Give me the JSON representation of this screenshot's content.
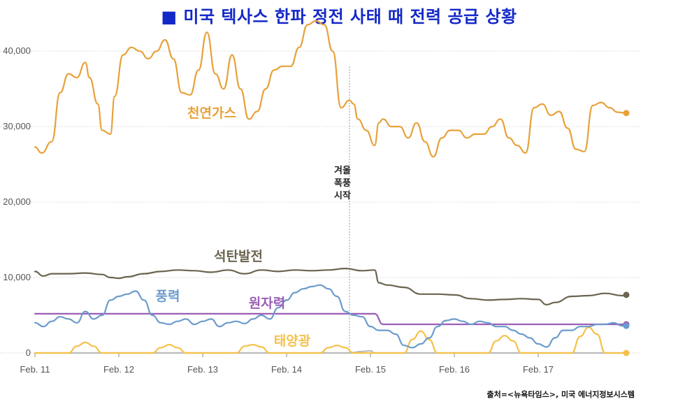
{
  "chart_data": {
    "type": "line",
    "title": "■ 미국 텍사스 한파 정전 사태 때 전력 공급 상황",
    "xlabel": "",
    "ylabel": "",
    "x_ticks": [
      "Feb. 11",
      "Feb. 12",
      "Feb. 13",
      "Feb. 14",
      "Feb. 15",
      "Feb. 16",
      "Feb. 17"
    ],
    "y_ticks": [
      "0",
      "10,000",
      "20,000",
      "30,000",
      "40,000"
    ],
    "xlim": [
      0,
      7.1
    ],
    "ylim": [
      0,
      44000
    ],
    "grid": true,
    "annotation": {
      "x": 3.75,
      "lines": [
        "겨울",
        "폭풍",
        "시작"
      ]
    },
    "series": [
      {
        "name": "천연가스",
        "color": "#e8a13a",
        "x": [
          0,
          0.08,
          0.2,
          0.3,
          0.4,
          0.5,
          0.6,
          0.65,
          0.75,
          0.8,
          0.9,
          0.95,
          1.05,
          1.15,
          1.25,
          1.35,
          1.45,
          1.55,
          1.65,
          1.75,
          1.85,
          1.95,
          2.05,
          2.15,
          2.25,
          2.35,
          2.45,
          2.55,
          2.65,
          2.75,
          2.85,
          2.95,
          3.05,
          3.15,
          3.25,
          3.35,
          3.45,
          3.55,
          3.65,
          3.75,
          3.8,
          3.85,
          3.95,
          4.05,
          4.1,
          4.15,
          4.25,
          4.3,
          4.35,
          4.45,
          4.55,
          4.65,
          4.75,
          4.85,
          4.95,
          5.05,
          5.15,
          5.25,
          5.35,
          5.45,
          5.55,
          5.65,
          5.75,
          5.85,
          5.95,
          6.05,
          6.15,
          6.25,
          6.35,
          6.45,
          6.55,
          6.65,
          6.75,
          6.85,
          6.95,
          7.05
        ],
        "values": [
          27300,
          26500,
          28000,
          34500,
          37000,
          36500,
          38500,
          36500,
          33000,
          29500,
          29000,
          34000,
          39500,
          40500,
          40000,
          39000,
          40000,
          41500,
          39000,
          34500,
          34200,
          37500,
          42500,
          37000,
          35000,
          39500,
          35000,
          31000,
          32000,
          35000,
          37500,
          38000,
          38000,
          40500,
          43500,
          44000,
          43500,
          40000,
          32500,
          33500,
          33000,
          31000,
          29500,
          27500,
          30500,
          31000,
          30000,
          30000,
          30000,
          28500,
          30500,
          28000,
          26000,
          28500,
          29500,
          29500,
          28500,
          29000,
          29000,
          30000,
          31000,
          28500,
          27500,
          26500,
          32500,
          33000,
          31500,
          32000,
          29800,
          27000,
          26700,
          32800,
          33200,
          32500,
          31900,
          31800
        ],
        "x_offset_start": 0
      },
      {
        "name": "석탄발전",
        "color": "#6b6450",
        "x": [
          0,
          0.1,
          0.2,
          0.4,
          0.6,
          0.8,
          0.9,
          1.0,
          1.1,
          1.3,
          1.5,
          1.7,
          1.9,
          2.1,
          2.3,
          2.5,
          2.7,
          2.9,
          3.1,
          3.3,
          3.5,
          3.7,
          3.9,
          4.05,
          4.1,
          4.2,
          4.4,
          4.6,
          4.8,
          5.0,
          5.2,
          5.4,
          5.6,
          5.8,
          6.0,
          6.1,
          6.2,
          6.4,
          6.6,
          6.8,
          7.0,
          7.05
        ],
        "values": [
          10800,
          10200,
          10500,
          10500,
          10600,
          10400,
          10000,
          9900,
          10100,
          10500,
          10800,
          11000,
          10900,
          10700,
          11000,
          10500,
          11000,
          10800,
          11000,
          10900,
          11000,
          11200,
          10900,
          11000,
          9300,
          9000,
          8700,
          7800,
          7800,
          7700,
          7200,
          7000,
          7100,
          7200,
          7100,
          6400,
          6700,
          7500,
          7600,
          7900,
          7600,
          7700
        ],
        "x_offset_start": 0
      },
      {
        "name": "풍력",
        "color": "#6b9bcc",
        "x": [
          0,
          0.1,
          0.2,
          0.3,
          0.4,
          0.5,
          0.6,
          0.7,
          0.8,
          0.9,
          1.0,
          1.1,
          1.2,
          1.3,
          1.4,
          1.5,
          1.6,
          1.7,
          1.8,
          1.9,
          2.0,
          2.1,
          2.2,
          2.3,
          2.4,
          2.5,
          2.6,
          2.7,
          2.8,
          2.9,
          3.0,
          3.1,
          3.2,
          3.3,
          3.4,
          3.5,
          3.6,
          3.7,
          3.8,
          3.9,
          4.0,
          4.1,
          4.2,
          4.3,
          4.4,
          4.5,
          4.6,
          4.7,
          4.8,
          4.9,
          5.0,
          5.1,
          5.2,
          5.3,
          5.4,
          5.5,
          5.6,
          5.7,
          5.8,
          5.9,
          6.0,
          6.1,
          6.2,
          6.3,
          6.4,
          6.5,
          6.6,
          6.7,
          6.8,
          6.9,
          7.0,
          7.05
        ],
        "values": [
          4000,
          3500,
          4200,
          4800,
          4500,
          4000,
          5500,
          4500,
          5000,
          7000,
          7500,
          7800,
          8200,
          7000,
          5000,
          4000,
          3800,
          4200,
          4500,
          3800,
          4200,
          4500,
          3500,
          4000,
          4200,
          3900,
          4500,
          5000,
          4500,
          6000,
          7000,
          8000,
          8500,
          8800,
          9000,
          8500,
          7500,
          5500,
          5000,
          4800,
          3500,
          3000,
          3000,
          2500,
          1000,
          700,
          1200,
          2000,
          3500,
          4300,
          4500,
          4200,
          3800,
          4200,
          4000,
          3500,
          3500,
          3000,
          2500,
          2000,
          1200,
          800,
          2000,
          3000,
          3000,
          3500,
          3500,
          3800,
          3800,
          4000,
          3600,
          3600
        ],
        "x_offset_start": 0
      },
      {
        "name": "원자력",
        "color": "#9a5fb6",
        "x": [
          0,
          4.05,
          4.15,
          7.05
        ],
        "values": [
          5200,
          5200,
          3800,
          3800
        ],
        "x_offset_start": 0
      },
      {
        "name": "태양광",
        "color": "#f5c14a",
        "x": [
          0,
          0.4,
          0.5,
          0.6,
          0.7,
          0.8,
          1.0,
          1.4,
          1.5,
          1.6,
          1.7,
          1.8,
          2.0,
          2.4,
          2.5,
          2.6,
          2.7,
          2.8,
          3.0,
          3.4,
          3.5,
          3.6,
          3.7,
          3.8,
          4.2,
          4.4,
          4.5,
          4.6,
          4.7,
          4.8,
          5.2,
          5.4,
          5.5,
          5.6,
          5.7,
          5.8,
          6.2,
          6.4,
          6.5,
          6.6,
          6.7,
          6.8,
          7.05
        ],
        "values": [
          0,
          0,
          900,
          1400,
          900,
          0,
          0,
          0,
          700,
          1100,
          700,
          0,
          0,
          0,
          900,
          1100,
          800,
          0,
          0,
          0,
          700,
          1000,
          700,
          0,
          0,
          0,
          1800,
          2900,
          1800,
          0,
          0,
          0,
          1600,
          2300,
          1600,
          0,
          0,
          0,
          2200,
          3400,
          2500,
          0,
          0
        ],
        "x_offset_start": 0
      },
      {
        "name": "",
        "color": "#bbbbbb",
        "x": [
          0,
          3.75,
          3.9,
          4.0,
          4.05,
          7.05
        ],
        "values": [
          0,
          0,
          200,
          300,
          0,
          0
        ],
        "x_offset_start": 0
      }
    ],
    "series_label_positions_note": ""
  },
  "source": "출처=<뉴욕타임스>, 미국 에너지정보시스템"
}
